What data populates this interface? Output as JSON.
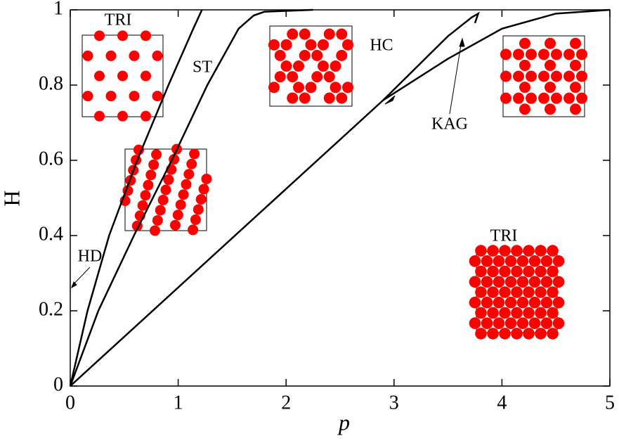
{
  "chart_data": {
    "type": "line",
    "xlabel": "p",
    "ylabel": "H",
    "xlim": [
      0,
      5
    ],
    "ylim": [
      0,
      1
    ],
    "xticks": [
      0,
      1,
      2,
      3,
      4,
      5
    ],
    "yticks": [
      0,
      0.2,
      0.4,
      0.6,
      0.8,
      1
    ],
    "series": [
      {
        "color": "#000000",
        "x": [
          0,
          0.16,
          0.36,
          0.62,
          0.91,
          1.14,
          1.22
        ],
        "values": [
          0,
          0.2,
          0.4,
          0.6,
          0.8,
          0.95,
          1
        ]
      },
      {
        "color": "#000000",
        "x": [
          0,
          0.26,
          0.59,
          0.94,
          1.27,
          1.56,
          1.7,
          1.8,
          2.25
        ],
        "values": [
          0,
          0.2,
          0.4,
          0.6,
          0.8,
          0.95,
          0.985,
          0.995,
          1
        ]
      },
      {
        "color": "#000000",
        "x": [
          0,
          2.9,
          3.5,
          3.72,
          3.78,
          3.75
        ],
        "values": [
          0,
          0.76,
          0.93,
          0.98,
          0.99,
          0.965
        ]
      },
      {
        "color": "#000000",
        "x": [
          2.9,
          3.5,
          4,
          4.5,
          5
        ],
        "values": [
          0.76,
          0.87,
          0.95,
          0.99,
          1
        ]
      }
    ],
    "annotations": [
      "TRI",
      "ST",
      "HC",
      "KAG",
      "TRI",
      "HD"
    ]
  }
}
